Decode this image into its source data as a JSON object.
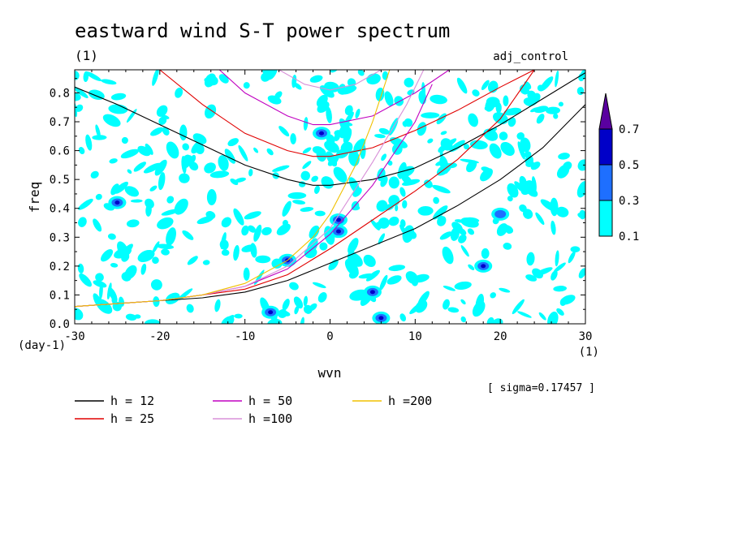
{
  "chart_data": {
    "type": "heatmap",
    "title": "eastward wind S-T power spectrum",
    "subtitle": "(1)",
    "run_label": "adj_control",
    "xlabel": "wvn",
    "x_unit": "(1)",
    "ylabel": "freq",
    "y_unit": "(day-1)",
    "xlim": [
      -30,
      30
    ],
    "ylim": [
      0,
      0.88
    ],
    "x_ticks": [
      -30,
      -20,
      -10,
      0,
      10,
      20,
      30
    ],
    "x_tick_labels": [
      "-30",
      "-20",
      "-10",
      "0",
      "10",
      "20",
      "30"
    ],
    "y_ticks": [
      0.0,
      0.1,
      0.2,
      0.3,
      0.4,
      0.5,
      0.6,
      0.7,
      0.8
    ],
    "y_tick_labels": [
      "0.0",
      "0.1",
      "0.2",
      "0.3",
      "0.4",
      "0.5",
      "0.6",
      "0.7",
      "0.8"
    ],
    "sigma_label": "[ sigma=0.17457 ]",
    "colorbar": {
      "levels": [
        0.1,
        0.3,
        0.5,
        0.7
      ],
      "level_labels": [
        "0.1",
        "0.3",
        "0.5",
        "0.7"
      ],
      "colors": [
        "#00ffff",
        "#1e6fff",
        "#0000c8",
        "#5a00a0"
      ]
    },
    "legend": [
      {
        "label": "h = 12",
        "h": 12,
        "color": "#000000"
      },
      {
        "label": "h = 25",
        "h": 25,
        "color": "#e00000"
      },
      {
        "label": "h = 50",
        "h": 50,
        "color": "#c000c0"
      },
      {
        "label": "h =100",
        "h": 100,
        "color": "#d890d8"
      },
      {
        "label": "h =200",
        "h": 200,
        "color": "#f0c000"
      }
    ],
    "series": [
      {
        "name": "h = 12 upper",
        "color": "#000000",
        "x": [
          -30,
          -25,
          -20,
          -15,
          -10,
          -5,
          -2,
          0,
          5,
          10,
          15,
          20,
          25,
          30
        ],
        "y": [
          0.82,
          0.76,
          0.69,
          0.62,
          0.55,
          0.5,
          0.48,
          0.48,
          0.5,
          0.54,
          0.61,
          0.69,
          0.78,
          0.87
        ]
      },
      {
        "name": "h = 12 lower",
        "color": "#000000",
        "x": [
          -30,
          -25,
          -20,
          -15,
          -10,
          -5,
          0,
          5,
          10,
          15,
          20,
          25,
          30
        ],
        "y": [
          0.06,
          0.07,
          0.08,
          0.09,
          0.11,
          0.15,
          0.21,
          0.27,
          0.33,
          0.41,
          0.5,
          0.61,
          0.76
        ]
      },
      {
        "name": "h = 25 upper",
        "color": "#e00000",
        "x": [
          -20,
          -15,
          -10,
          -5,
          -2,
          0,
          5,
          10,
          15,
          20,
          24
        ],
        "y": [
          0.88,
          0.76,
          0.66,
          0.6,
          0.58,
          0.58,
          0.61,
          0.67,
          0.74,
          0.82,
          0.88
        ]
      },
      {
        "name": "h = 25 lower",
        "color": "#e00000",
        "x": [
          -30,
          -25,
          -20,
          -15,
          -10,
          -5,
          0,
          5,
          10,
          15,
          20,
          24
        ],
        "y": [
          0.06,
          0.07,
          0.08,
          0.1,
          0.12,
          0.17,
          0.26,
          0.36,
          0.46,
          0.57,
          0.71,
          0.88
        ]
      },
      {
        "name": "h = 50 upper",
        "color": "#c000c0",
        "x": [
          -13,
          -10,
          -5,
          -2,
          0,
          5,
          10,
          14
        ],
        "y": [
          0.88,
          0.8,
          0.72,
          0.69,
          0.69,
          0.72,
          0.8,
          0.88
        ]
      },
      {
        "name": "h = 50 lower",
        "color": "#c000c0",
        "x": [
          -30,
          -25,
          -20,
          -15,
          -10,
          -5,
          0,
          5,
          10,
          12
        ],
        "y": [
          0.06,
          0.07,
          0.08,
          0.1,
          0.13,
          0.19,
          0.31,
          0.48,
          0.7,
          0.83
        ]
      },
      {
        "name": "h =100 upper",
        "color": "#d890d8",
        "x": [
          -6,
          -3,
          0,
          3,
          6
        ],
        "y": [
          0.88,
          0.83,
          0.81,
          0.83,
          0.88
        ]
      },
      {
        "name": "h =100 lower",
        "color": "#d890d8",
        "x": [
          -30,
          -25,
          -20,
          -15,
          -10,
          -5,
          0,
          5,
          9,
          11
        ],
        "y": [
          0.06,
          0.07,
          0.08,
          0.1,
          0.13,
          0.2,
          0.33,
          0.56,
          0.76,
          0.88
        ]
      },
      {
        "name": "h =200 lower",
        "color": "#f0c000",
        "x": [
          -30,
          -25,
          -20,
          -15,
          -10,
          -5,
          -2,
          0,
          3,
          5,
          7
        ],
        "y": [
          0.06,
          0.07,
          0.08,
          0.1,
          0.14,
          0.22,
          0.3,
          0.38,
          0.55,
          0.7,
          0.88
        ]
      }
    ],
    "notable_maxima": [
      {
        "wvn": -25,
        "freq": 0.42,
        "level": 0.5
      },
      {
        "wvn": -5,
        "freq": 0.22,
        "level": 0.5
      },
      {
        "wvn": -7,
        "freq": 0.04,
        "level": 0.5
      },
      {
        "wvn": 1,
        "freq": 0.36,
        "level": 0.5
      },
      {
        "wvn": 1,
        "freq": 0.32,
        "level": 0.5
      },
      {
        "wvn": 5,
        "freq": 0.11,
        "level": 0.5
      },
      {
        "wvn": 6,
        "freq": 0.02,
        "level": 0.5
      },
      {
        "wvn": 18,
        "freq": 0.2,
        "level": 0.5
      },
      {
        "wvn": -1,
        "freq": 0.66,
        "level": 0.5
      },
      {
        "wvn": 20,
        "freq": 0.38,
        "level": 0.3
      }
    ]
  }
}
